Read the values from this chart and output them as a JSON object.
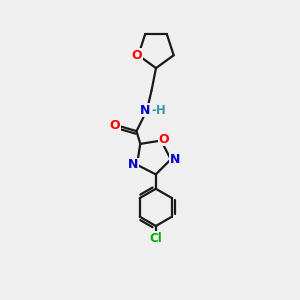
{
  "background_color": "#efefef",
  "bond_color": "#1a1a1a",
  "atom_colors": {
    "O": "#ff0000",
    "N": "#0000cd",
    "Cl": "#00aa00",
    "C": "#1a1a1a",
    "H": "#3a9a9a"
  },
  "lw": 1.6,
  "fontsize": 9
}
